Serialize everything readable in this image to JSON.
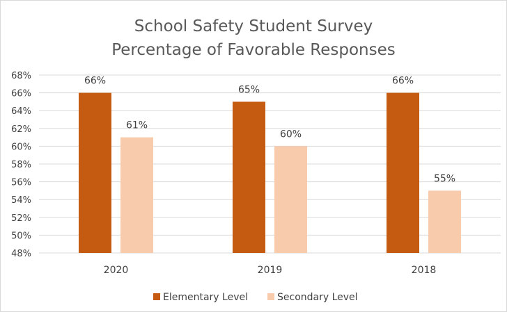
{
  "chart_data": {
    "type": "bar",
    "title": "School Safety Student Survey",
    "subtitle": "Percentage of Favorable Responses",
    "categories": [
      "2020",
      "2019",
      "2018"
    ],
    "series": [
      {
        "name": "Elementary Level",
        "values": [
          66,
          65,
          66
        ],
        "labels": [
          "66%",
          "65%",
          "66%"
        ],
        "color": "#c55a11"
      },
      {
        "name": "Secondary Level",
        "values": [
          61,
          60,
          55
        ],
        "labels": [
          "61%",
          "60%",
          "55%"
        ],
        "color": "#f8cbad"
      }
    ],
    "ylim": [
      48,
      68
    ],
    "y_ticks": [
      48,
      50,
      52,
      54,
      56,
      58,
      60,
      62,
      64,
      66,
      68
    ],
    "y_tick_labels": [
      "48%",
      "50%",
      "52%",
      "54%",
      "56%",
      "58%",
      "60%",
      "62%",
      "64%",
      "66%",
      "68%"
    ],
    "xlabel": "",
    "ylabel": "",
    "grid": true,
    "legend_position": "bottom",
    "gridline_color": "#d9d9d9"
  }
}
